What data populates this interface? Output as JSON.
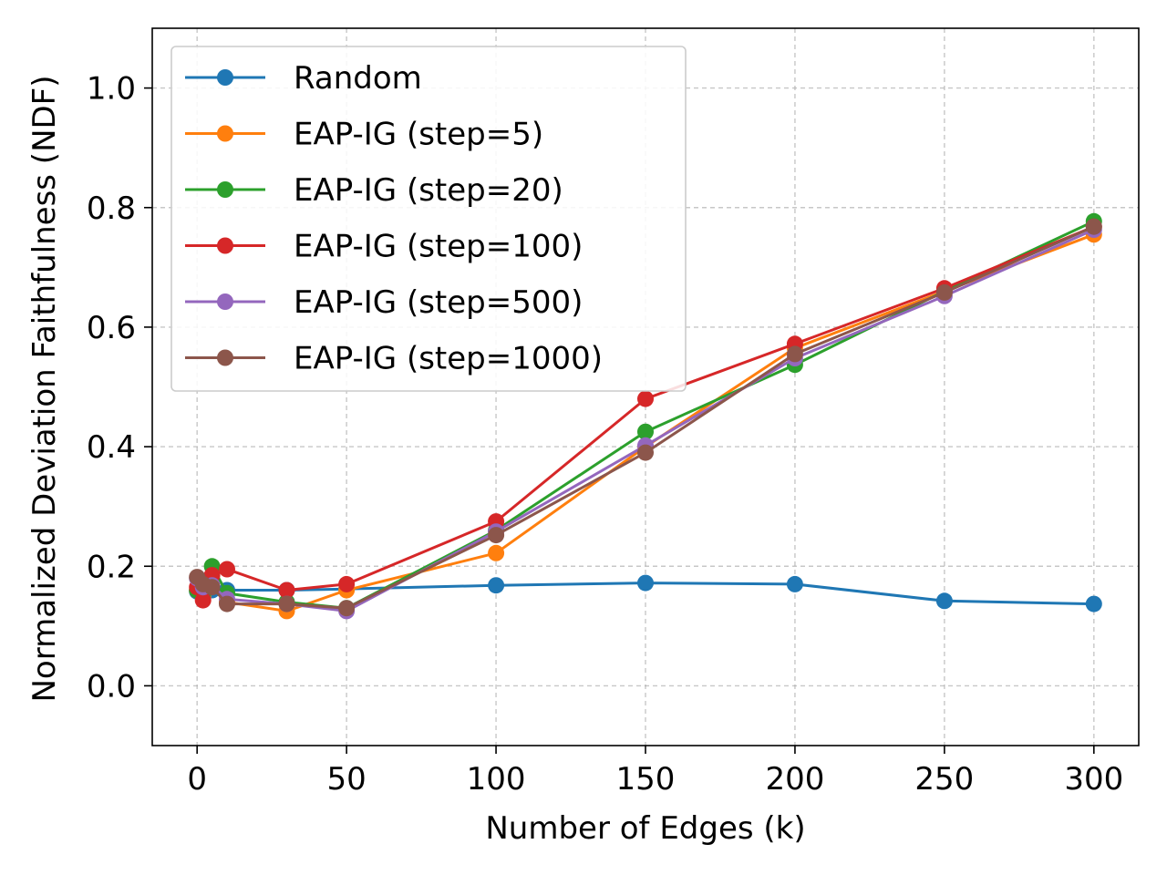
{
  "chart_data": {
    "type": "line",
    "title": "",
    "xlabel": "Number of Edges (k)",
    "ylabel": "Normalized Deviation Faithfulness (NDF)",
    "xlim": [
      -15,
      315
    ],
    "ylim": [
      -0.1,
      1.1
    ],
    "xticks": [
      0,
      50,
      100,
      150,
      200,
      250,
      300
    ],
    "yticks": [
      0.0,
      0.2,
      0.4,
      0.6,
      0.8,
      1.0
    ],
    "xtick_labels": [
      "0",
      "50",
      "100",
      "150",
      "200",
      "250",
      "300"
    ],
    "ytick_labels": [
      "0.0",
      "0.2",
      "0.4",
      "0.6",
      "0.8",
      "1.0"
    ],
    "grid": true,
    "legend_position": "top-left",
    "series": [
      {
        "name": "Random",
        "color": "#1f77b4",
        "x": [
          0,
          2,
          5,
          10,
          30,
          50,
          100,
          150,
          200,
          250,
          300
        ],
        "y": [
          0.158,
          0.16,
          0.16,
          0.16,
          0.16,
          0.162,
          0.168,
          0.172,
          0.17,
          0.142,
          0.137
        ]
      },
      {
        "name": "EAP-IG (step=5)",
        "color": "#ff7f0e",
        "x": [
          0,
          2,
          5,
          10,
          30,
          50,
          100,
          150,
          200,
          250,
          300
        ],
        "y": [
          0.16,
          0.15,
          0.175,
          0.14,
          0.125,
          0.16,
          0.222,
          0.4,
          0.565,
          0.66,
          0.755
        ]
      },
      {
        "name": "EAP-IG (step=20)",
        "color": "#2ca02c",
        "x": [
          0,
          2,
          5,
          10,
          30,
          50,
          100,
          150,
          200,
          250,
          300
        ],
        "y": [
          0.16,
          0.155,
          0.2,
          0.155,
          0.14,
          0.13,
          0.26,
          0.425,
          0.537,
          0.66,
          0.777
        ]
      },
      {
        "name": "EAP-IG (step=100)",
        "color": "#d62728",
        "x": [
          0,
          2,
          5,
          10,
          30,
          50,
          100,
          150,
          200,
          250,
          300
        ],
        "y": [
          0.165,
          0.143,
          0.185,
          0.195,
          0.16,
          0.17,
          0.275,
          0.48,
          0.572,
          0.665,
          0.768
        ]
      },
      {
        "name": "EAP-IG (step=500)",
        "color": "#9467bd",
        "x": [
          0,
          2,
          5,
          10,
          30,
          50,
          100,
          150,
          200,
          250,
          300
        ],
        "y": [
          0.18,
          0.165,
          0.168,
          0.145,
          0.137,
          0.125,
          0.258,
          0.402,
          0.548,
          0.652,
          0.763
        ]
      },
      {
        "name": "EAP-IG (step=1000)",
        "color": "#8c564b",
        "x": [
          0,
          2,
          5,
          10,
          30,
          50,
          100,
          150,
          200,
          250,
          300
        ],
        "y": [
          0.182,
          0.17,
          0.165,
          0.137,
          0.137,
          0.13,
          0.252,
          0.39,
          0.555,
          0.658,
          0.768
        ]
      }
    ]
  }
}
